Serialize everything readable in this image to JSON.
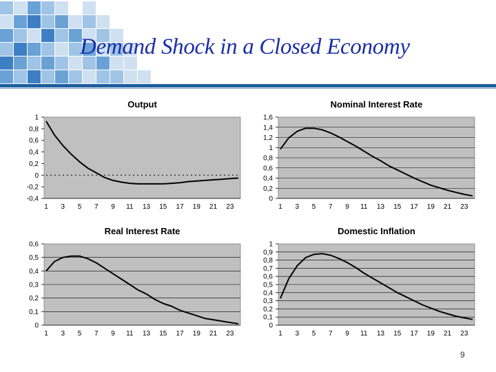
{
  "slide": {
    "title": "Demand Shock in a Closed Economy",
    "page_number": "9"
  },
  "colors": {
    "plot_background": "#c0c0c0",
    "gridline": "#000000",
    "series_line": "#000000",
    "title_text": "#1a2ea8",
    "header_rule": "#1f5fa0",
    "mosaic_palette": [
      "#1f5fa0",
      "#3d7fc4",
      "#6aa2d6",
      "#9fc4e6",
      "#cfe0f1",
      "#e6eff8"
    ]
  },
  "chart_data": [
    {
      "type": "line",
      "title": "Output",
      "xlabel": "",
      "ylabel": "",
      "x": [
        1,
        2,
        3,
        4,
        5,
        6,
        7,
        8,
        9,
        10,
        11,
        12,
        13,
        14,
        15,
        16,
        17,
        18,
        19,
        20,
        21,
        22,
        23,
        24
      ],
      "x_ticks": [
        "1",
        "3",
        "5",
        "7",
        "9",
        "11",
        "13",
        "15",
        "17",
        "19",
        "21",
        "23"
      ],
      "y_ticks": [
        "1",
        "0,8",
        "0,6",
        "0,4",
        "0,2",
        "0",
        "-0,2",
        "-0,4"
      ],
      "ylim": [
        -0.4,
        1
      ],
      "zero_line": "dotted",
      "grid": false,
      "series": [
        {
          "values": [
            0.93,
            0.69,
            0.51,
            0.36,
            0.23,
            0.12,
            0.04,
            -0.04,
            -0.09,
            -0.12,
            -0.14,
            -0.15,
            -0.15,
            -0.15,
            -0.15,
            -0.14,
            -0.13,
            -0.11,
            -0.1,
            -0.09,
            -0.08,
            -0.07,
            -0.06,
            -0.05
          ]
        }
      ]
    },
    {
      "type": "line",
      "title": "Nominal Interest Rate",
      "xlabel": "",
      "ylabel": "",
      "x": [
        1,
        2,
        3,
        4,
        5,
        6,
        7,
        8,
        9,
        10,
        11,
        12,
        13,
        14,
        15,
        16,
        17,
        18,
        19,
        20,
        21,
        22,
        23,
        24
      ],
      "x_ticks": [
        "1",
        "3",
        "5",
        "7",
        "9",
        "11",
        "13",
        "15",
        "17",
        "19",
        "21",
        "23"
      ],
      "y_ticks": [
        "1,6",
        "1,4",
        "1,2",
        "1",
        "0,8",
        "0,6",
        "0,4",
        "0,2",
        "0"
      ],
      "ylim": [
        0,
        1.6
      ],
      "grid": true,
      "series": [
        {
          "values": [
            0.97,
            1.19,
            1.32,
            1.38,
            1.38,
            1.35,
            1.29,
            1.21,
            1.12,
            1.03,
            0.93,
            0.83,
            0.74,
            0.64,
            0.56,
            0.48,
            0.4,
            0.33,
            0.26,
            0.21,
            0.16,
            0.12,
            0.08,
            0.05
          ]
        }
      ]
    },
    {
      "type": "line",
      "title": "Real Interest Rate",
      "xlabel": "",
      "ylabel": "",
      "x": [
        1,
        2,
        3,
        4,
        5,
        6,
        7,
        8,
        9,
        10,
        11,
        12,
        13,
        14,
        15,
        16,
        17,
        18,
        19,
        20,
        21,
        22,
        23,
        24
      ],
      "x_ticks": [
        "1",
        "3",
        "5",
        "7",
        "9",
        "11",
        "13",
        "15",
        "17",
        "19",
        "21",
        "23"
      ],
      "y_ticks": [
        "0,6",
        "0,5",
        "0,4",
        "0,3",
        "0,2",
        "0,1",
        "0"
      ],
      "ylim": [
        0,
        0.6
      ],
      "grid": true,
      "series": [
        {
          "values": [
            0.4,
            0.47,
            0.5,
            0.51,
            0.51,
            0.49,
            0.46,
            0.42,
            0.38,
            0.34,
            0.3,
            0.26,
            0.23,
            0.19,
            0.16,
            0.14,
            0.11,
            0.09,
            0.07,
            0.05,
            0.04,
            0.03,
            0.02,
            0.01
          ]
        }
      ]
    },
    {
      "type": "line",
      "title": "Domestic Inflation",
      "xlabel": "",
      "ylabel": "",
      "x": [
        1,
        2,
        3,
        4,
        5,
        6,
        7,
        8,
        9,
        10,
        11,
        12,
        13,
        14,
        15,
        16,
        17,
        18,
        19,
        20,
        21,
        22,
        23,
        24
      ],
      "x_ticks": [
        "1",
        "3",
        "5",
        "7",
        "9",
        "11",
        "13",
        "15",
        "17",
        "19",
        "21",
        "23"
      ],
      "y_ticks": [
        "1",
        "0,9",
        "0,8",
        "0,7",
        "0,6",
        "0,5",
        "0,4",
        "0,3",
        "0,2",
        "0,1",
        "0"
      ],
      "ylim": [
        0,
        1
      ],
      "grid": true,
      "series": [
        {
          "values": [
            0.33,
            0.57,
            0.73,
            0.83,
            0.87,
            0.88,
            0.86,
            0.82,
            0.77,
            0.71,
            0.64,
            0.58,
            0.52,
            0.46,
            0.4,
            0.35,
            0.3,
            0.25,
            0.21,
            0.17,
            0.14,
            0.11,
            0.09,
            0.07
          ]
        }
      ]
    }
  ]
}
